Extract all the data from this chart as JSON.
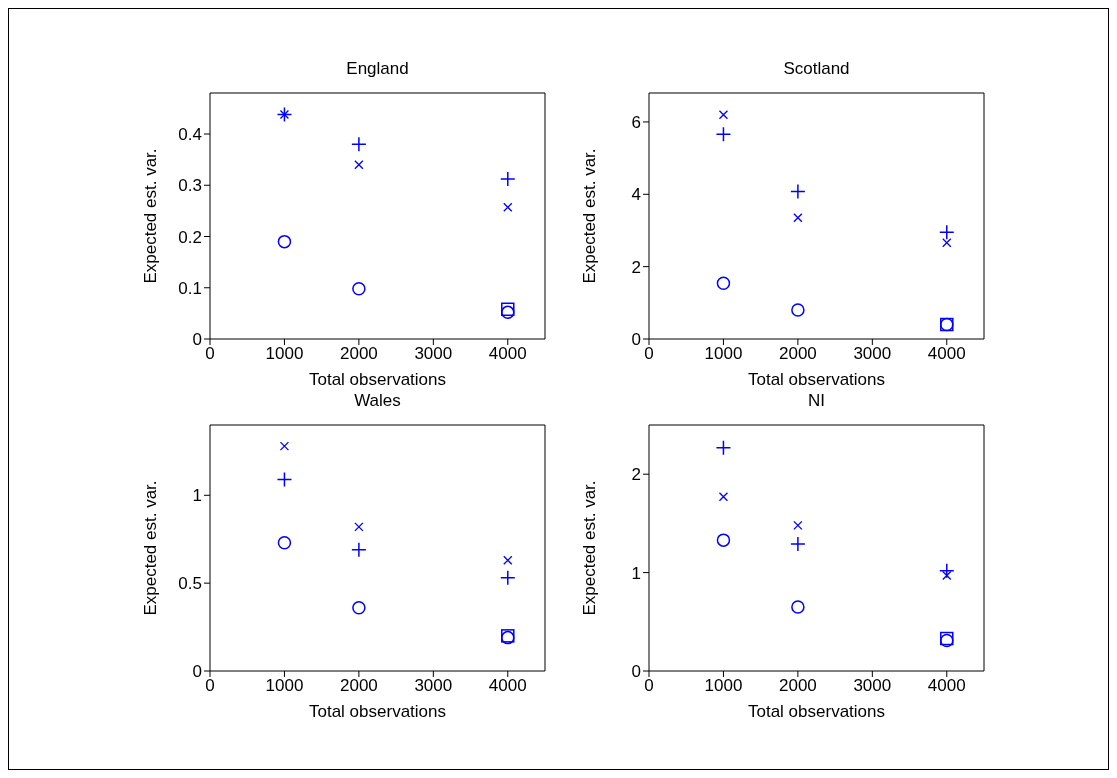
{
  "chart_data": [
    {
      "type": "scatter",
      "title": "England",
      "xlabel": "Total observations",
      "ylabel": "Expected est. var.",
      "xlim": [
        0,
        4500
      ],
      "xticks": [
        0,
        1000,
        2000,
        3000,
        4000
      ],
      "ylim": [
        0,
        0.48
      ],
      "yticks": [
        0,
        0.1,
        0.2,
        0.3,
        0.4
      ],
      "series": [
        {
          "marker": "circle",
          "color": "#0000ff",
          "x": [
            1000,
            2000,
            4000
          ],
          "values": [
            0.19,
            0.098,
            0.052
          ]
        },
        {
          "marker": "plus",
          "color": "#0000ff",
          "x": [
            1000,
            2000,
            4000
          ],
          "values": [
            0.438,
            0.38,
            0.312
          ]
        },
        {
          "marker": "cross",
          "color": "#0000ff",
          "x": [
            1000,
            2000,
            4000
          ],
          "values": [
            0.438,
            0.34,
            0.257
          ]
        },
        {
          "marker": "square",
          "color": "#0000ff",
          "x": [
            4000
          ],
          "values": [
            0.058
          ]
        }
      ]
    },
    {
      "type": "scatter",
      "title": "Scotland",
      "xlabel": "Total observations",
      "ylabel": "Expected est. var.",
      "xlim": [
        0,
        4500
      ],
      "xticks": [
        0,
        1000,
        2000,
        3000,
        4000
      ],
      "ylim": [
        0,
        6.8
      ],
      "yticks": [
        0,
        2,
        4,
        6
      ],
      "series": [
        {
          "marker": "circle",
          "color": "#0000ff",
          "x": [
            1000,
            2000,
            4000
          ],
          "values": [
            1.54,
            0.8,
            0.4
          ]
        },
        {
          "marker": "plus",
          "color": "#0000ff",
          "x": [
            1000,
            2000,
            4000
          ],
          "values": [
            5.66,
            4.08,
            2.95
          ]
        },
        {
          "marker": "cross",
          "color": "#0000ff",
          "x": [
            1000,
            2000,
            4000
          ],
          "values": [
            6.2,
            3.35,
            2.66
          ]
        },
        {
          "marker": "square",
          "color": "#0000ff",
          "x": [
            4000
          ],
          "values": [
            0.4
          ]
        }
      ]
    },
    {
      "type": "scatter",
      "title": "Wales",
      "xlabel": "Total observations",
      "ylabel": "Expected est. var.",
      "xlim": [
        0,
        4500
      ],
      "xticks": [
        0,
        1000,
        2000,
        3000,
        4000
      ],
      "ylim": [
        0,
        1.4
      ],
      "yticks": [
        0,
        0.5,
        1
      ],
      "series": [
        {
          "marker": "circle",
          "color": "#0000ff",
          "x": [
            1000,
            2000,
            4000
          ],
          "values": [
            0.73,
            0.36,
            0.19
          ]
        },
        {
          "marker": "plus",
          "color": "#0000ff",
          "x": [
            1000,
            2000,
            4000
          ],
          "values": [
            1.09,
            0.69,
            0.53
          ]
        },
        {
          "marker": "cross",
          "color": "#0000ff",
          "x": [
            1000,
            2000,
            4000
          ],
          "values": [
            1.28,
            0.82,
            0.63
          ]
        },
        {
          "marker": "square",
          "color": "#0000ff",
          "x": [
            4000
          ],
          "values": [
            0.2
          ]
        }
      ]
    },
    {
      "type": "scatter",
      "title": "NI",
      "xlabel": "Total observations",
      "ylabel": "Expected est. var.",
      "xlim": [
        0,
        4500
      ],
      "xticks": [
        0,
        1000,
        2000,
        3000,
        4000
      ],
      "ylim": [
        0,
        2.5
      ],
      "yticks": [
        0,
        1,
        2
      ],
      "series": [
        {
          "marker": "circle",
          "color": "#0000ff",
          "x": [
            1000,
            2000,
            4000
          ],
          "values": [
            1.33,
            0.65,
            0.31
          ]
        },
        {
          "marker": "plus",
          "color": "#0000ff",
          "x": [
            1000,
            2000,
            4000
          ],
          "values": [
            2.27,
            1.29,
            1.02
          ]
        },
        {
          "marker": "cross",
          "color": "#0000ff",
          "x": [
            1000,
            2000,
            4000
          ],
          "values": [
            1.77,
            1.48,
            0.97
          ]
        },
        {
          "marker": "square",
          "color": "#0000ff",
          "x": [
            4000
          ],
          "values": [
            0.33
          ]
        }
      ]
    }
  ]
}
